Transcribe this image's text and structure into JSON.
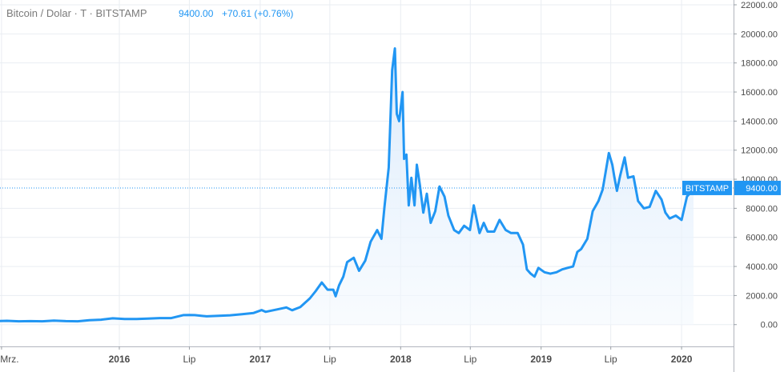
{
  "header": {
    "symbol_label": "Bitcoin / Dolar · T · BITSTAMP",
    "price": "9400.00",
    "change": "+70.61 (+0.76%)"
  },
  "price_tag": {
    "exchange": "BITSTAMP",
    "value": "9400.00"
  },
  "colors": {
    "line": "#2196f3",
    "fill_top": "#d6e8fb",
    "fill_bottom": "#f4f9fe",
    "grid": "#e9edf2",
    "axis_text": "#4a4a4a",
    "tag_bg": "#2196f3",
    "header_text": "#7a7a7a",
    "header_value": "#2196f3"
  },
  "chart_data": {
    "type": "line",
    "fill": "area",
    "y_ticks": [
      "0.00",
      "2000.00",
      "4000.00",
      "6000.00",
      "8000.00",
      "10000.00",
      "12000.00",
      "14000.00",
      "16000.00",
      "18000.00",
      "20000.00",
      "22000.00"
    ],
    "y_tick_values": [
      0,
      2000,
      4000,
      6000,
      8000,
      10000,
      12000,
      14000,
      16000,
      18000,
      20000,
      22000
    ],
    "ylim": [
      -1500,
      22000
    ],
    "x_ticks": [
      {
        "label": "Mrz.",
        "x": "2015-03-01",
        "bold": false
      },
      {
        "label": "2016",
        "x": "2016-01-01",
        "bold": true
      },
      {
        "label": "Lip",
        "x": "2016-07-01",
        "bold": false
      },
      {
        "label": "2017",
        "x": "2017-01-01",
        "bold": true
      },
      {
        "label": "Lip",
        "x": "2017-07-01",
        "bold": false
      },
      {
        "label": "2018",
        "x": "2018-01-01",
        "bold": true
      },
      {
        "label": "Lip",
        "x": "2018-07-01",
        "bold": false
      },
      {
        "label": "2019",
        "x": "2019-01-01",
        "bold": true
      },
      {
        "label": "Lip",
        "x": "2019-07-01",
        "bold": false
      },
      {
        "label": "2020",
        "x": "2020-01-01",
        "bold": true
      }
    ],
    "xlim": [
      "2015-02-25",
      "2020-05-15"
    ],
    "current_value": 9400,
    "grid": true,
    "series": [
      {
        "x": [
          "2015-02-25",
          "2015-03-15",
          "2015-04-15",
          "2015-05-15",
          "2015-06-15",
          "2015-07-15",
          "2015-08-15",
          "2015-09-15",
          "2015-10-15",
          "2015-11-15",
          "2015-12-15",
          "2016-01-15",
          "2016-02-15",
          "2016-03-15",
          "2016-04-15",
          "2016-05-15",
          "2016-06-15",
          "2016-07-01",
          "2016-07-15",
          "2016-08-15",
          "2016-09-15",
          "2016-10-15",
          "2016-11-15",
          "2016-12-15",
          "2017-01-05",
          "2017-01-15",
          "2017-02-15",
          "2017-03-10",
          "2017-03-25",
          "2017-04-15",
          "2017-05-10",
          "2017-05-25",
          "2017-06-10",
          "2017-06-25",
          "2017-07-10",
          "2017-07-16",
          "2017-07-25",
          "2017-08-05",
          "2017-08-15",
          "2017-09-01",
          "2017-09-15",
          "2017-10-01",
          "2017-10-15",
          "2017-11-01",
          "2017-11-12",
          "2017-11-20",
          "2017-12-01",
          "2017-12-10",
          "2017-12-17",
          "2017-12-22",
          "2017-12-28",
          "2018-01-06",
          "2018-01-10",
          "2018-01-16",
          "2018-01-22",
          "2018-01-29",
          "2018-02-06",
          "2018-02-12",
          "2018-02-20",
          "2018-03-01",
          "2018-03-10",
          "2018-03-20",
          "2018-04-01",
          "2018-04-12",
          "2018-04-25",
          "2018-05-05",
          "2018-05-20",
          "2018-06-01",
          "2018-06-15",
          "2018-06-30",
          "2018-07-10",
          "2018-07-25",
          "2018-08-05",
          "2018-08-15",
          "2018-09-01",
          "2018-09-15",
          "2018-10-01",
          "2018-10-15",
          "2018-11-01",
          "2018-11-15",
          "2018-11-25",
          "2018-12-05",
          "2018-12-15",
          "2018-12-25",
          "2019-01-10",
          "2019-01-25",
          "2019-02-10",
          "2019-02-25",
          "2019-03-10",
          "2019-03-25",
          "2019-04-05",
          "2019-04-15",
          "2019-05-01",
          "2019-05-15",
          "2019-05-30",
          "2019-06-10",
          "2019-06-26",
          "2019-07-05",
          "2019-07-10",
          "2019-07-17",
          "2019-07-25",
          "2019-08-06",
          "2019-08-15",
          "2019-08-29",
          "2019-09-10",
          "2019-09-25",
          "2019-10-10",
          "2019-10-26",
          "2019-11-10",
          "2019-11-20",
          "2019-12-01",
          "2019-12-17",
          "2020-01-01",
          "2020-01-15",
          "2020-01-25",
          "2020-02-01"
        ],
        "y": [
          250,
          260,
          230,
          240,
          230,
          280,
          240,
          230,
          300,
          340,
          430,
          380,
          380,
          410,
          450,
          450,
          650,
          660,
          650,
          570,
          600,
          640,
          720,
          800,
          1000,
          880,
          1050,
          1180,
          990,
          1200,
          1800,
          2300,
          2900,
          2400,
          2400,
          1950,
          2700,
          3300,
          4300,
          4600,
          3700,
          4400,
          5700,
          6500,
          5900,
          8100,
          10800,
          17500,
          19000,
          14500,
          14000,
          16000,
          11400,
          11700,
          8200,
          10100,
          8200,
          11000,
          9600,
          7700,
          9000,
          7000,
          7800,
          9500,
          8800,
          7500,
          6500,
          6300,
          6800,
          6500,
          8200,
          6300,
          7000,
          6400,
          6400,
          7200,
          6500,
          6300,
          6300,
          5500,
          3800,
          3500,
          3300,
          3900,
          3600,
          3500,
          3600,
          3800,
          3900,
          4000,
          5000,
          5200,
          5900,
          7800,
          8500,
          9300,
          11800,
          11000,
          10200,
          9200,
          10200,
          11500,
          10100,
          10200,
          8500,
          8000,
          8100,
          9200,
          8600,
          7700,
          7300,
          7500,
          7200,
          8800,
          9100,
          9400
        ]
      }
    ]
  }
}
